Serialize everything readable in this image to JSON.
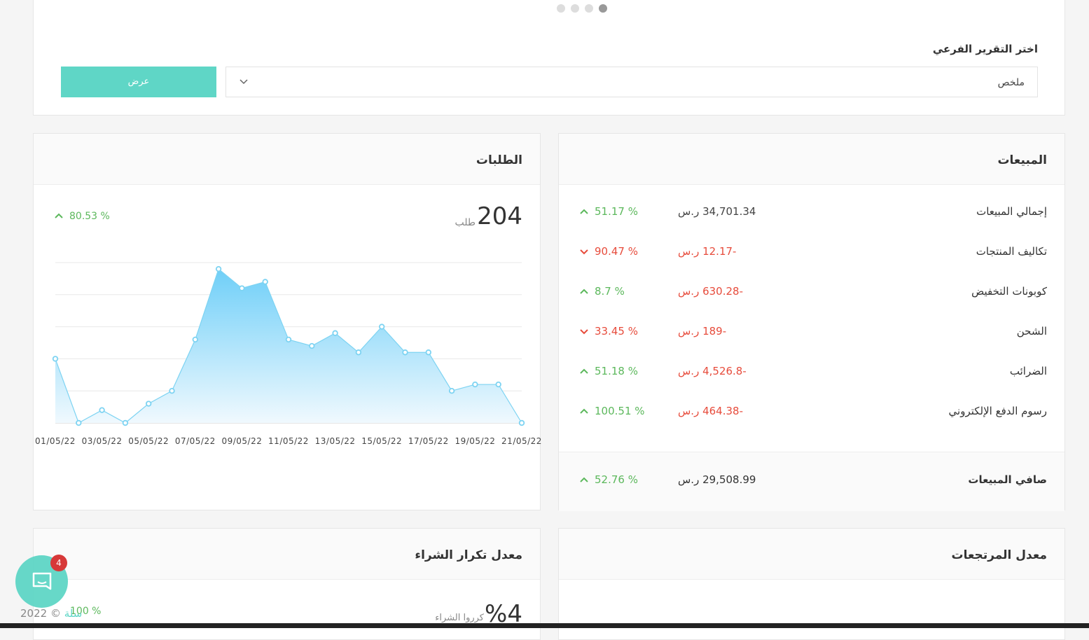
{
  "filter": {
    "label": "اختر التقرير الفرعي",
    "selected": "ملخص",
    "button": "عرض"
  },
  "sales": {
    "title": "المبيعات",
    "rows": [
      {
        "label": "إجمالي المبيعات",
        "value": "34,701.34 ر.س",
        "change": "51.17 %",
        "trend": "up",
        "negative": false
      },
      {
        "label": "تكاليف المنتجات",
        "value": "-12.17 ر.س",
        "change": "90.47 %",
        "trend": "down",
        "negative": true
      },
      {
        "label": "كوبونات التخفيض",
        "value": "-630.28 ر.س",
        "change": "8.7 %",
        "trend": "up",
        "negative": true
      },
      {
        "label": "الشحن",
        "value": "-189 ر.س",
        "change": "33.45 %",
        "trend": "down",
        "negative": true
      },
      {
        "label": "الضرائب",
        "value": "-4,526.8 ر.س",
        "change": "51.18 %",
        "trend": "up",
        "negative": true
      },
      {
        "label": "رسوم الدفع الإلكتروني",
        "value": "-464.38 ر.س",
        "change": "100.51 %",
        "trend": "up",
        "negative": true
      }
    ],
    "net": {
      "label": "صافي المبيعات",
      "value": "29,508.99 ر.س",
      "change": "52.76 %",
      "trend": "up"
    }
  },
  "orders": {
    "title": "الطلبات",
    "count": "204",
    "unit": "طلب",
    "change": "80.53 %",
    "trend": "up"
  },
  "chart_data": {
    "type": "area",
    "categories": [
      "01/05/22",
      null,
      "03/05/22",
      null,
      "05/05/22",
      null,
      "07/05/22",
      null,
      "09/05/22",
      null,
      "11/05/22",
      null,
      "13/05/22",
      null,
      "15/05/22",
      null,
      "17/05/22",
      null,
      "19/05/22",
      null,
      "21/05/22"
    ],
    "values": [
      10,
      0,
      2,
      0,
      3,
      5,
      13,
      24,
      21,
      22,
      13,
      12,
      14,
      11,
      15,
      11,
      11,
      5,
      6,
      6,
      0
    ],
    "color": "#7dd3f2",
    "ylim": [
      0,
      25
    ],
    "yticks": [
      0,
      5,
      10,
      15,
      20,
      25
    ],
    "grid": true
  },
  "repeat": {
    "title": "معدل تكرار الشراء",
    "value": "%4",
    "unit": "كرروا الشراء",
    "change": "100 %"
  },
  "returns": {
    "title": "معدل المرتجعات"
  },
  "footer": {
    "copyright": "2022 ©",
    "brand": "سلة"
  },
  "chat": {
    "badge": "4"
  }
}
